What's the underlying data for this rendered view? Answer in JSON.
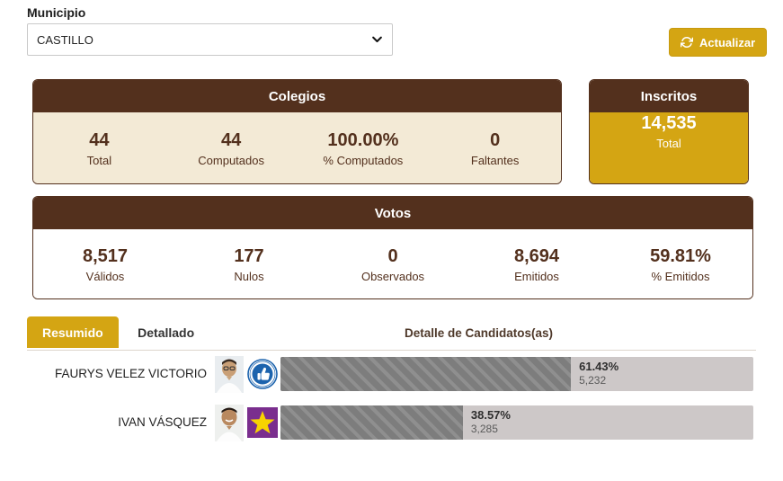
{
  "controls": {
    "municipio_label": "Municipio",
    "municipio_value": "CASTILLO",
    "refresh_label": "Actualizar"
  },
  "colegios": {
    "title": "Colegios",
    "stats": [
      {
        "value": "44",
        "label": "Total"
      },
      {
        "value": "44",
        "label": "Computados"
      },
      {
        "value": "100.00%",
        "label": "% Computados"
      },
      {
        "value": "0",
        "label": "Faltantes"
      }
    ]
  },
  "inscritos": {
    "title": "Inscritos",
    "value": "14,535",
    "label": "Total"
  },
  "votos": {
    "title": "Votos",
    "stats": [
      {
        "value": "8,517",
        "label": "Válidos"
      },
      {
        "value": "177",
        "label": "Nulos"
      },
      {
        "value": "0",
        "label": "Observados"
      },
      {
        "value": "8,694",
        "label": "Emitidos"
      },
      {
        "value": "59.81%",
        "label": "% Emitidos"
      }
    ]
  },
  "tabs": {
    "resumido": "Resumido",
    "detallado": "Detallado",
    "detail_title": "Detalle de Candidatos(as)"
  },
  "candidates": [
    {
      "name": "FAURYS VELEZ VICTORIO",
      "percent_label": "61.43%",
      "percent_value": 61.43,
      "votes": "5,232",
      "party_logo": "blue-thumbs-up-circle-emblem"
    },
    {
      "name": "IVAN VÁSQUEZ",
      "percent_label": "38.57%",
      "percent_value": 38.57,
      "votes": "3,285",
      "party_logo": "purple-square-yellow-star-emblem"
    }
  ],
  "colors": {
    "brown": "#53301d",
    "cream": "#f3ead6",
    "gold": "#d4a513",
    "bar_track": "#cdc8c8",
    "bar_fill": "#7d7d7d",
    "logo_blue": "#1c63ad",
    "logo_purple": "#7a2e8e",
    "logo_star_yellow": "#f8d301"
  }
}
